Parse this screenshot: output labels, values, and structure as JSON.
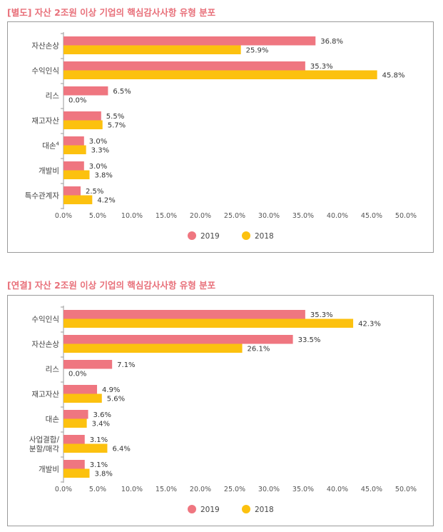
{
  "chart_data": [
    {
      "type": "bar",
      "orientation": "horizontal",
      "title": "[별도] 자산 2조원 이상 기업의 핵심감사사항 유형 분포",
      "categories": [
        {
          "label": "자산손상",
          "sup": ""
        },
        {
          "label": "수익인식",
          "sup": ""
        },
        {
          "label": "리스",
          "sup": ""
        },
        {
          "label": "재고자산",
          "sup": ""
        },
        {
          "label": "대손",
          "sup": "4"
        },
        {
          "label": "개발비",
          "sup": ""
        },
        {
          "label": "특수관계자",
          "sup": ""
        }
      ],
      "series": [
        {
          "name": "2019",
          "color": "#ef7680",
          "values": [
            36.8,
            35.3,
            6.5,
            5.5,
            3.0,
            3.0,
            2.5
          ],
          "labels": [
            "36.8%",
            "35.3%",
            "6.5%",
            "5.5%",
            "3.0%",
            "3.0%",
            "2.5%"
          ]
        },
        {
          "name": "2018",
          "color": "#fcc10f",
          "values": [
            25.9,
            45.8,
            0.0,
            5.7,
            3.3,
            3.8,
            4.2
          ],
          "labels": [
            "25.9%",
            "45.8%",
            "0.0%",
            "5.7%",
            "3.3%",
            "3.8%",
            "4.2%"
          ]
        }
      ],
      "xlim": [
        0,
        50
      ],
      "xticks": [
        "0.0%",
        "5.0%",
        "10.0%",
        "15.0%",
        "20.0%",
        "25.0%",
        "30.0%",
        "35.0%",
        "40.0%",
        "45.0%",
        "50.0%"
      ],
      "legend_position": "bottom-center",
      "grid": false
    },
    {
      "type": "bar",
      "orientation": "horizontal",
      "title": "[연결] 자산 2조원 이상 기업의 핵심감사사항 유형 분포",
      "categories": [
        {
          "label": "수익인식",
          "sup": ""
        },
        {
          "label": "자산손상",
          "sup": ""
        },
        {
          "label": "리스",
          "sup": ""
        },
        {
          "label": "재고자산",
          "sup": ""
        },
        {
          "label": "대손",
          "sup": ""
        },
        {
          "label": "사업결합/\n분할/매각",
          "sup": ""
        },
        {
          "label": "개발비",
          "sup": ""
        }
      ],
      "series": [
        {
          "name": "2019",
          "color": "#ef7680",
          "values": [
            35.3,
            33.5,
            7.1,
            4.9,
            3.6,
            3.1,
            3.1
          ],
          "labels": [
            "35.3%",
            "33.5%",
            "7.1%",
            "4.9%",
            "3.6%",
            "3.1%",
            "3.1%"
          ]
        },
        {
          "name": "2018",
          "color": "#fcc10f",
          "values": [
            42.3,
            26.1,
            0.0,
            5.6,
            3.4,
            6.4,
            3.8
          ],
          "labels": [
            "42.3%",
            "26.1%",
            "0.0%",
            "5.6%",
            "3.4%",
            "6.4%",
            "3.8%"
          ]
        }
      ],
      "xlim": [
        0,
        50
      ],
      "xticks": [
        "0.0%",
        "5.0%",
        "10.0%",
        "15.0%",
        "20.0%",
        "25.0%",
        "30.0%",
        "35.0%",
        "40.0%",
        "45.0%",
        "50.0%"
      ],
      "legend_position": "bottom-center",
      "grid": false
    }
  ]
}
